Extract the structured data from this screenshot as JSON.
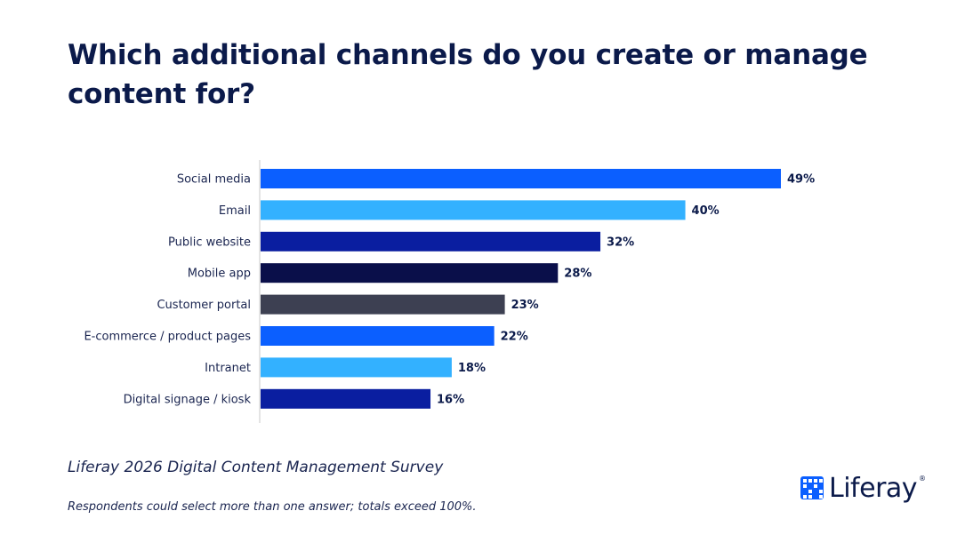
{
  "title": "Which additional channels do you create or manage content for?",
  "source": "Liferay 2026 Digital Content Management Survey",
  "footnote": "Respondents could select more than one answer; totals exceed 100%.",
  "logo": {
    "text": "Liferay",
    "registered": "®",
    "icon": "liferay-logo-icon",
    "color": "#0b5fff"
  },
  "chart_data": {
    "type": "bar",
    "orientation": "horizontal",
    "title": "Which additional channels do you create or manage content for?",
    "xlabel": "",
    "ylabel": "",
    "xlim": [
      0,
      49
    ],
    "grid": false,
    "legend": "none",
    "categories": [
      "Social media",
      "Email",
      "Public website",
      "Mobile app",
      "Customer portal",
      "E-commerce / product pages",
      "Intranet",
      "Digital signage / kiosk"
    ],
    "values": [
      49,
      40,
      32,
      28,
      23,
      22,
      18,
      16
    ],
    "value_labels": [
      "49%",
      "40%",
      "32%",
      "28%",
      "23%",
      "22%",
      "18%",
      "16%"
    ],
    "colors": [
      "#0b5fff",
      "#33b1ff",
      "#0a1ea0",
      "#0a0f4a",
      "#3d4052",
      "#0b5fff",
      "#33b1ff",
      "#0a1ea0"
    ]
  }
}
